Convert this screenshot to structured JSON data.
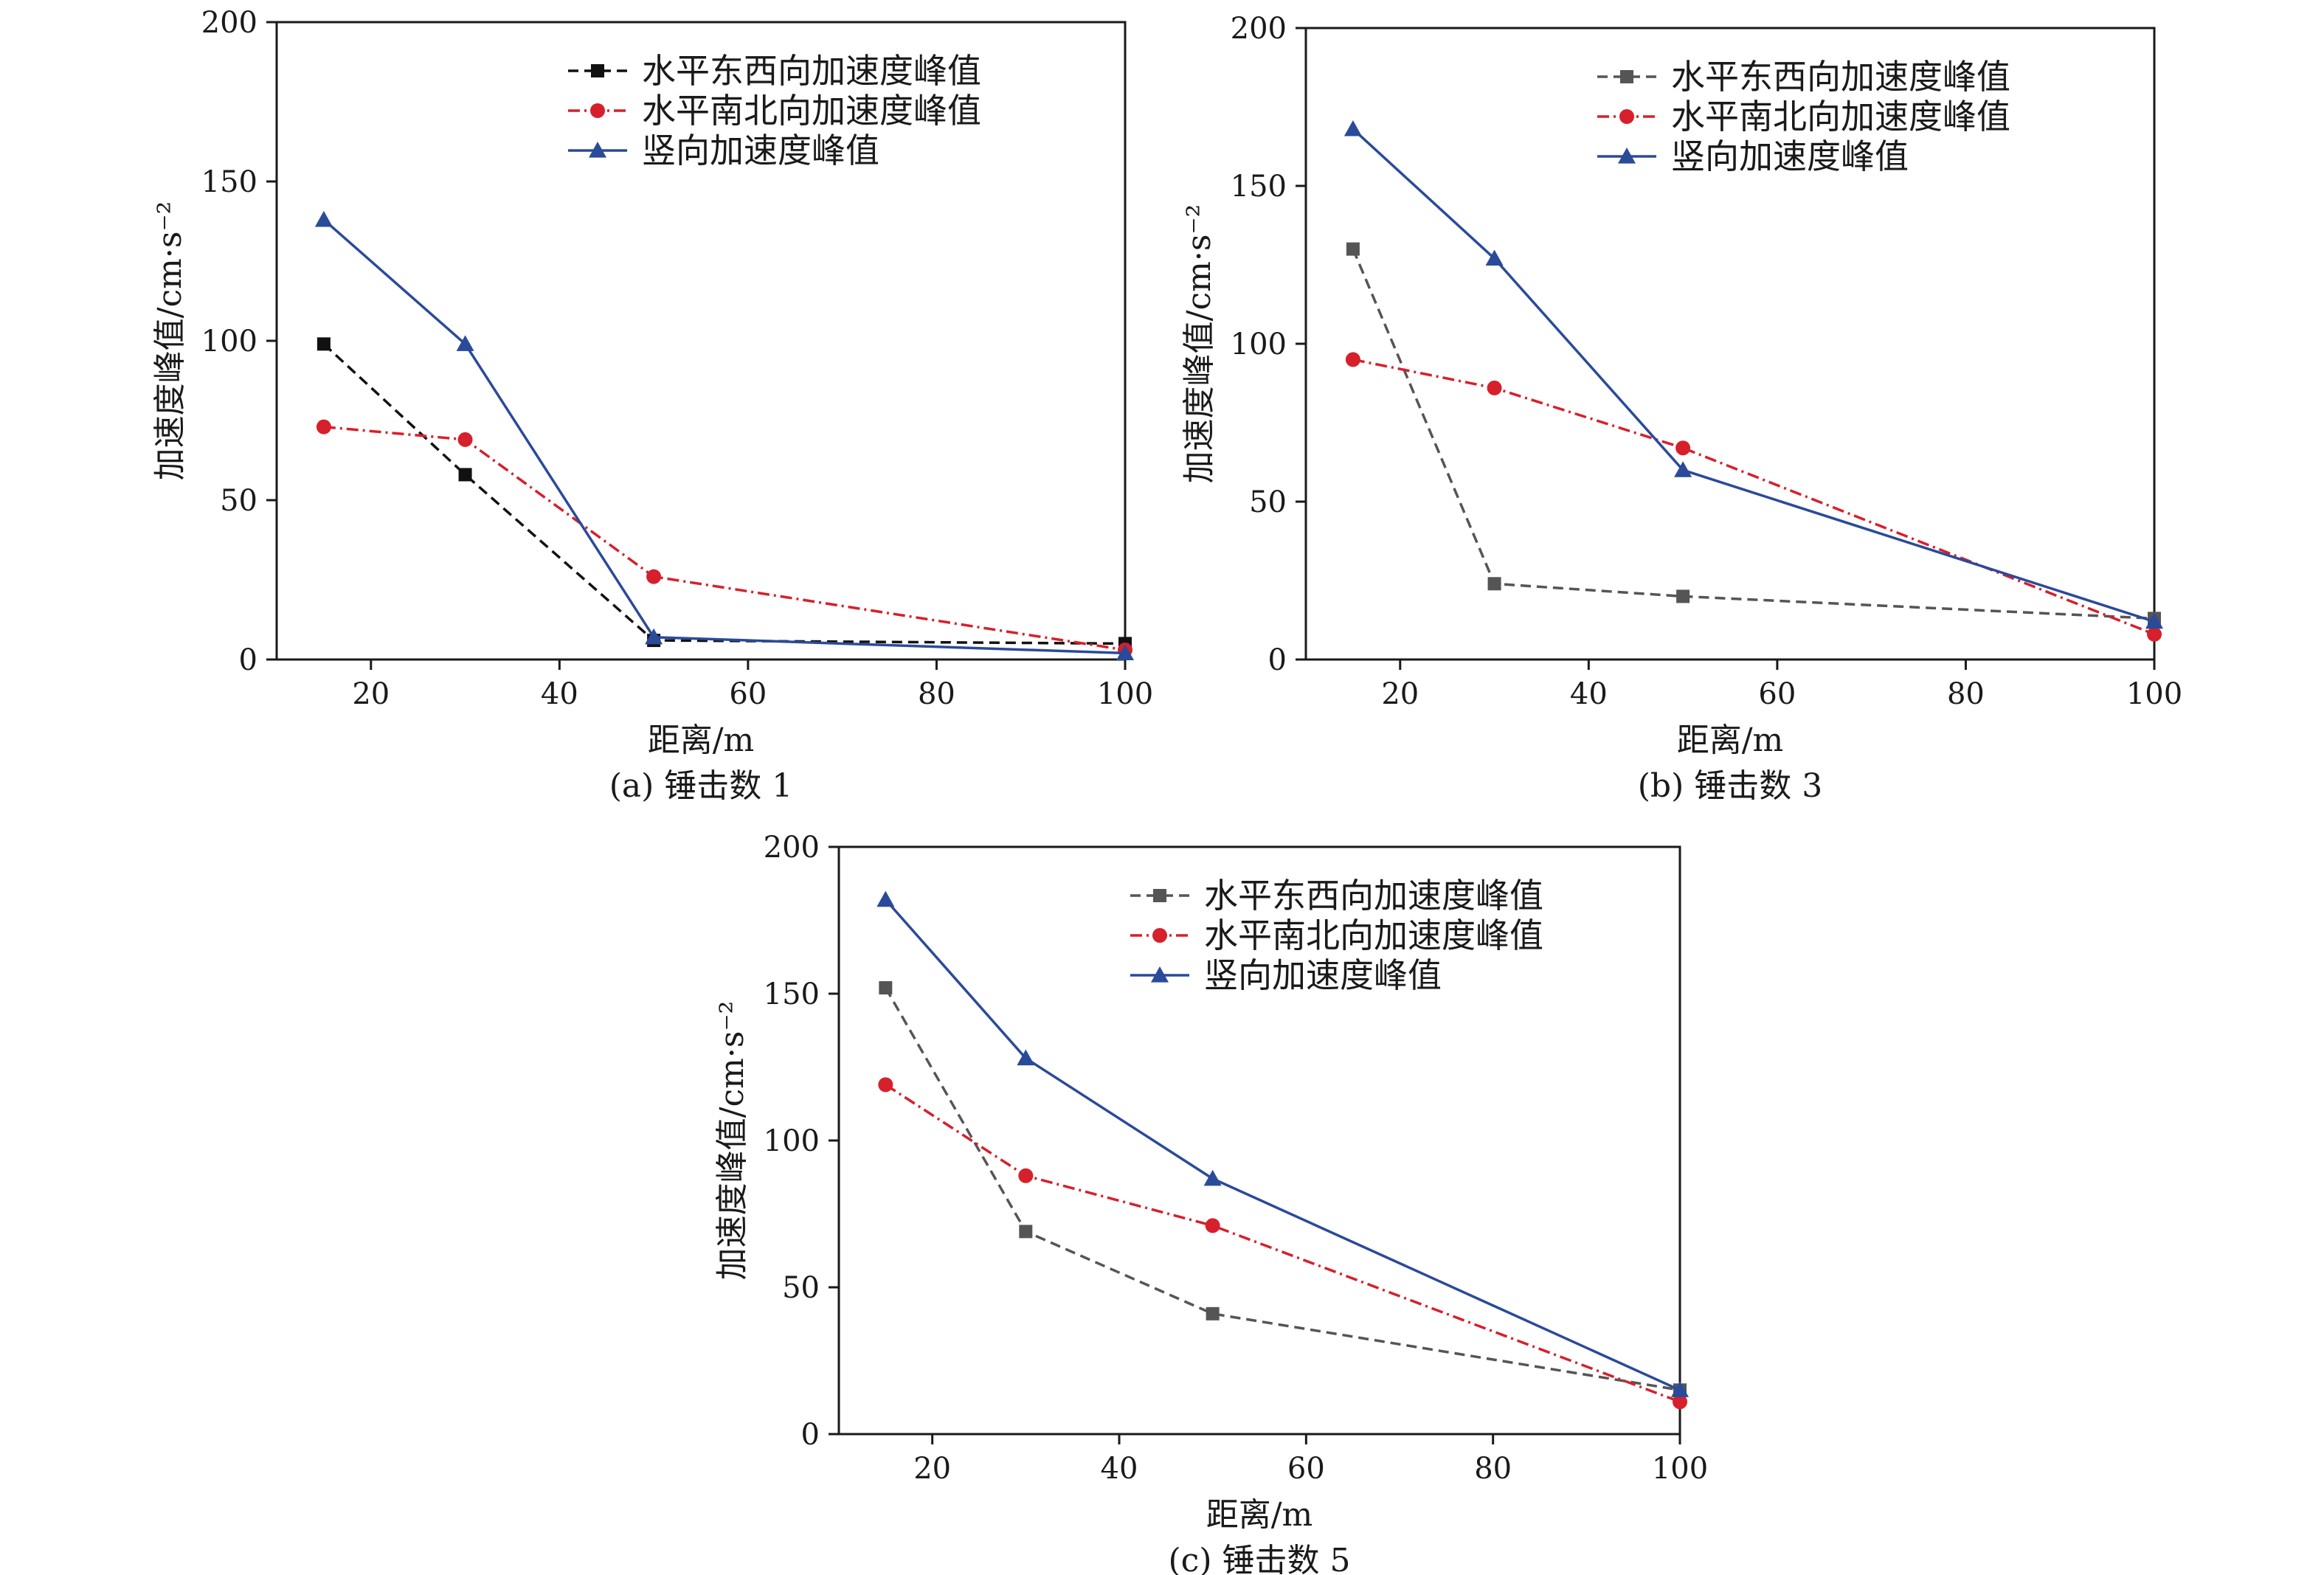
{
  "chart_data": [
    {
      "type": "line",
      "caption": "(a) 锤击数 1",
      "xlabel": "距离/m",
      "ylabel": "加速度峰值/cm·s⁻²",
      "xlim": [
        10,
        100
      ],
      "ylim": [
        0,
        200
      ],
      "xticks": [
        20,
        40,
        60,
        80,
        100
      ],
      "yticks": [
        0,
        50,
        100,
        150,
        200
      ],
      "legend_position": "top-right",
      "grid": false,
      "x": [
        15,
        30,
        50,
        100
      ],
      "series": [
        {
          "name": "水平东西向加速度峰值",
          "values": [
            99,
            58,
            6,
            5
          ],
          "color": "#111111",
          "dash": "14,8",
          "marker": "square"
        },
        {
          "name": "水平南北向加速度峰值",
          "values": [
            73,
            69,
            26,
            3
          ],
          "color": "#d6202b",
          "dash": "16,6,3,6",
          "marker": "circle"
        },
        {
          "name": "竖向加速度峰值",
          "values": [
            138,
            99,
            7,
            2
          ],
          "color": "#2a4a9a",
          "dash": "",
          "marker": "triangle"
        }
      ]
    },
    {
      "type": "line",
      "caption": "(b) 锤击数 3",
      "xlabel": "距离/m",
      "ylabel": "加速度峰值/cm·s⁻²",
      "xlim": [
        10,
        100
      ],
      "ylim": [
        0,
        200
      ],
      "xticks": [
        20,
        40,
        60,
        80,
        100
      ],
      "yticks": [
        0,
        50,
        100,
        150,
        200
      ],
      "legend_position": "top-right",
      "grid": false,
      "x": [
        15,
        30,
        50,
        100
      ],
      "series": [
        {
          "name": "水平东西向加速度峰值",
          "values": [
            130,
            24,
            20,
            13
          ],
          "color": "#555555",
          "dash": "14,8",
          "marker": "square"
        },
        {
          "name": "水平南北向加速度峰值",
          "values": [
            95,
            86,
            67,
            8
          ],
          "color": "#d6202b",
          "dash": "16,6,3,6",
          "marker": "circle"
        },
        {
          "name": "竖向加速度峰值",
          "values": [
            168,
            127,
            60,
            12
          ],
          "color": "#2a4a9a",
          "dash": "",
          "marker": "triangle"
        }
      ]
    },
    {
      "type": "line",
      "caption": "(c) 锤击数 5",
      "xlabel": "距离/m",
      "ylabel": "加速度峰值/cm·s⁻²",
      "xlim": [
        10,
        100
      ],
      "ylim": [
        0,
        200
      ],
      "xticks": [
        20,
        40,
        60,
        80,
        100
      ],
      "yticks": [
        0,
        50,
        100,
        150,
        200
      ],
      "legend_position": "top-right",
      "grid": false,
      "x": [
        15,
        30,
        50,
        100
      ],
      "series": [
        {
          "name": "水平东西向加速度峰值",
          "values": [
            152,
            69,
            41,
            15
          ],
          "color": "#555555",
          "dash": "14,8",
          "marker": "square"
        },
        {
          "name": "水平南北向加速度峰值",
          "values": [
            119,
            88,
            71,
            11
          ],
          "color": "#d6202b",
          "dash": "16,6,3,6",
          "marker": "circle"
        },
        {
          "name": "竖向加速度峰值",
          "values": [
            182,
            128,
            87,
            15
          ],
          "color": "#2a4a9a",
          "dash": "",
          "marker": "triangle"
        }
      ]
    }
  ]
}
